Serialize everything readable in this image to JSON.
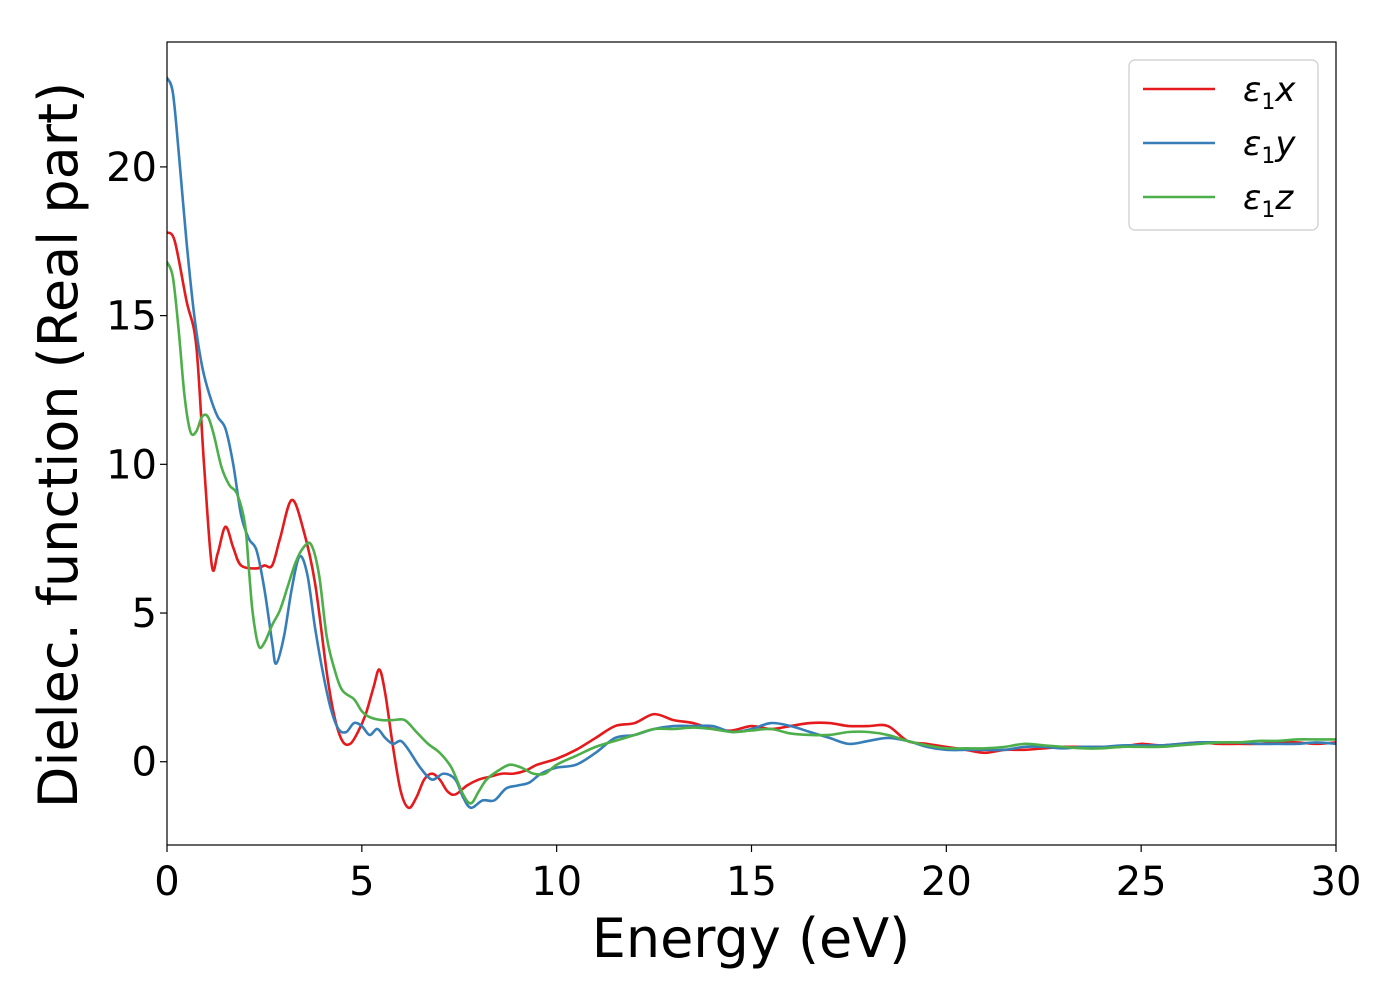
{
  "chart_data": {
    "type": "line",
    "title": "",
    "xlabel": "Energy (eV)",
    "ylabel": "Dielec. function (Real part)",
    "xlim": [
      0,
      30
    ],
    "ylim": [
      -2.8,
      24.2
    ],
    "xticks": [
      0,
      5,
      10,
      15,
      20,
      25,
      30
    ],
    "yticks": [
      0,
      5,
      10,
      15,
      20
    ],
    "grid": false,
    "legend_position": "top-right",
    "series": [
      {
        "name": "ε1x",
        "legend": {
          "base": "ε",
          "sub": "1",
          "suffix": "x"
        },
        "color": "#e41a1c",
        "points": [
          [
            0,
            17.8
          ],
          [
            0.2,
            17.5
          ],
          [
            0.5,
            15.5
          ],
          [
            0.75,
            14.0
          ],
          [
            0.95,
            10.0
          ],
          [
            1.15,
            6.6
          ],
          [
            1.3,
            7.0
          ],
          [
            1.5,
            7.9
          ],
          [
            1.7,
            7.2
          ],
          [
            1.9,
            6.6
          ],
          [
            2.3,
            6.5
          ],
          [
            2.5,
            6.6
          ],
          [
            2.7,
            6.6
          ],
          [
            2.9,
            7.5
          ],
          [
            3.2,
            8.8
          ],
          [
            3.5,
            7.8
          ],
          [
            3.8,
            6.0
          ],
          [
            4.1,
            3.0
          ],
          [
            4.3,
            1.5
          ],
          [
            4.5,
            0.7
          ],
          [
            4.7,
            0.6
          ],
          [
            4.9,
            1.0
          ],
          [
            5.1,
            1.6
          ],
          [
            5.3,
            2.5
          ],
          [
            5.45,
            3.1
          ],
          [
            5.6,
            2.3
          ],
          [
            5.8,
            0.5
          ],
          [
            6.0,
            -1.0
          ],
          [
            6.2,
            -1.55
          ],
          [
            6.4,
            -1.2
          ],
          [
            6.6,
            -0.6
          ],
          [
            6.8,
            -0.4
          ],
          [
            7.0,
            -0.6
          ],
          [
            7.2,
            -1.0
          ],
          [
            7.4,
            -1.1
          ],
          [
            7.7,
            -0.8
          ],
          [
            8.0,
            -0.6
          ],
          [
            8.3,
            -0.5
          ],
          [
            8.6,
            -0.4
          ],
          [
            8.9,
            -0.4
          ],
          [
            9.2,
            -0.3
          ],
          [
            9.5,
            -0.1
          ],
          [
            10.0,
            0.1
          ],
          [
            10.5,
            0.4
          ],
          [
            11.0,
            0.8
          ],
          [
            11.5,
            1.2
          ],
          [
            12.0,
            1.3
          ],
          [
            12.5,
            1.6
          ],
          [
            13.0,
            1.4
          ],
          [
            13.5,
            1.3
          ],
          [
            14.0,
            1.1
          ],
          [
            14.5,
            1.05
          ],
          [
            15.0,
            1.2
          ],
          [
            15.5,
            1.1
          ],
          [
            16.0,
            1.2
          ],
          [
            16.5,
            1.3
          ],
          [
            17.0,
            1.3
          ],
          [
            17.5,
            1.2
          ],
          [
            18.0,
            1.2
          ],
          [
            18.5,
            1.2
          ],
          [
            19.0,
            0.7
          ],
          [
            19.5,
            0.6
          ],
          [
            20.0,
            0.5
          ],
          [
            20.5,
            0.4
          ],
          [
            21.0,
            0.3
          ],
          [
            21.5,
            0.4
          ],
          [
            22.0,
            0.4
          ],
          [
            22.5,
            0.45
          ],
          [
            23.0,
            0.5
          ],
          [
            23.5,
            0.5
          ],
          [
            24.0,
            0.5
          ],
          [
            24.5,
            0.5
          ],
          [
            25.0,
            0.6
          ],
          [
            25.5,
            0.55
          ],
          [
            26.0,
            0.6
          ],
          [
            26.5,
            0.65
          ],
          [
            27.0,
            0.6
          ],
          [
            27.5,
            0.6
          ],
          [
            28.0,
            0.6
          ],
          [
            28.5,
            0.65
          ],
          [
            29.0,
            0.65
          ],
          [
            29.5,
            0.6
          ],
          [
            30.0,
            0.65
          ]
        ]
      },
      {
        "name": "ε1y",
        "legend": {
          "base": "ε",
          "sub": "1",
          "suffix": "y"
        },
        "color": "#377eb8",
        "points": [
          [
            0,
            23.0
          ],
          [
            0.15,
            22.5
          ],
          [
            0.3,
            20.5
          ],
          [
            0.5,
            17.5
          ],
          [
            0.7,
            15.0
          ],
          [
            0.9,
            13.3
          ],
          [
            1.1,
            12.3
          ],
          [
            1.3,
            11.6
          ],
          [
            1.5,
            11.2
          ],
          [
            1.7,
            10.0
          ],
          [
            1.9,
            8.3
          ],
          [
            2.1,
            7.5
          ],
          [
            2.3,
            7.1
          ],
          [
            2.5,
            5.8
          ],
          [
            2.7,
            4.0
          ],
          [
            2.8,
            3.3
          ],
          [
            3.0,
            4.2
          ],
          [
            3.2,
            5.8
          ],
          [
            3.4,
            6.9
          ],
          [
            3.6,
            6.3
          ],
          [
            3.8,
            4.5
          ],
          [
            4.0,
            3.0
          ],
          [
            4.2,
            1.8
          ],
          [
            4.4,
            1.1
          ],
          [
            4.6,
            1.0
          ],
          [
            4.8,
            1.3
          ],
          [
            5.0,
            1.2
          ],
          [
            5.2,
            0.9
          ],
          [
            5.4,
            1.1
          ],
          [
            5.6,
            0.8
          ],
          [
            5.8,
            0.6
          ],
          [
            6.0,
            0.7
          ],
          [
            6.2,
            0.4
          ],
          [
            6.5,
            -0.2
          ],
          [
            6.8,
            -0.6
          ],
          [
            7.1,
            -0.4
          ],
          [
            7.4,
            -0.6
          ],
          [
            7.6,
            -1.2
          ],
          [
            7.8,
            -1.55
          ],
          [
            8.1,
            -1.3
          ],
          [
            8.4,
            -1.3
          ],
          [
            8.7,
            -0.9
          ],
          [
            9.0,
            -0.8
          ],
          [
            9.3,
            -0.7
          ],
          [
            9.6,
            -0.4
          ],
          [
            10.0,
            -0.2
          ],
          [
            10.5,
            -0.1
          ],
          [
            11.0,
            0.3
          ],
          [
            11.5,
            0.8
          ],
          [
            12.0,
            0.9
          ],
          [
            12.5,
            1.1
          ],
          [
            13.0,
            1.2
          ],
          [
            13.5,
            1.2
          ],
          [
            14.0,
            1.2
          ],
          [
            14.5,
            1.0
          ],
          [
            15.0,
            1.1
          ],
          [
            15.5,
            1.3
          ],
          [
            16.0,
            1.2
          ],
          [
            16.5,
            1.0
          ],
          [
            17.0,
            0.8
          ],
          [
            17.5,
            0.6
          ],
          [
            18.0,
            0.7
          ],
          [
            18.5,
            0.8
          ],
          [
            19.0,
            0.7
          ],
          [
            19.5,
            0.5
          ],
          [
            20.0,
            0.4
          ],
          [
            20.5,
            0.4
          ],
          [
            21.0,
            0.4
          ],
          [
            21.5,
            0.4
          ],
          [
            22.0,
            0.5
          ],
          [
            22.5,
            0.5
          ],
          [
            23.0,
            0.45
          ],
          [
            23.5,
            0.5
          ],
          [
            24.0,
            0.5
          ],
          [
            24.5,
            0.55
          ],
          [
            25.0,
            0.55
          ],
          [
            25.5,
            0.55
          ],
          [
            26.0,
            0.6
          ],
          [
            26.5,
            0.65
          ],
          [
            27.0,
            0.65
          ],
          [
            27.5,
            0.65
          ],
          [
            28.0,
            0.6
          ],
          [
            28.5,
            0.6
          ],
          [
            29.0,
            0.6
          ],
          [
            29.5,
            0.65
          ],
          [
            30.0,
            0.6
          ]
        ]
      },
      {
        "name": "ε1z",
        "legend": {
          "base": "ε",
          "sub": "1",
          "suffix": "z"
        },
        "color": "#4daf4a",
        "points": [
          [
            0,
            16.8
          ],
          [
            0.15,
            16.3
          ],
          [
            0.3,
            14.5
          ],
          [
            0.45,
            12.3
          ],
          [
            0.6,
            11.1
          ],
          [
            0.75,
            11.1
          ],
          [
            0.9,
            11.6
          ],
          [
            1.05,
            11.6
          ],
          [
            1.2,
            11.0
          ],
          [
            1.4,
            9.9
          ],
          [
            1.6,
            9.3
          ],
          [
            1.8,
            9.0
          ],
          [
            2.0,
            8.0
          ],
          [
            2.1,
            6.5
          ],
          [
            2.2,
            5.0
          ],
          [
            2.35,
            3.9
          ],
          [
            2.5,
            4.0
          ],
          [
            2.7,
            4.6
          ],
          [
            2.9,
            5.1
          ],
          [
            3.1,
            5.9
          ],
          [
            3.3,
            6.7
          ],
          [
            3.5,
            7.2
          ],
          [
            3.7,
            7.3
          ],
          [
            3.9,
            6.3
          ],
          [
            4.1,
            4.2
          ],
          [
            4.3,
            3.1
          ],
          [
            4.5,
            2.4
          ],
          [
            4.8,
            2.1
          ],
          [
            5.0,
            1.7
          ],
          [
            5.2,
            1.5
          ],
          [
            5.5,
            1.4
          ],
          [
            5.8,
            1.4
          ],
          [
            6.1,
            1.4
          ],
          [
            6.4,
            1.0
          ],
          [
            6.7,
            0.6
          ],
          [
            7.0,
            0.3
          ],
          [
            7.3,
            -0.2
          ],
          [
            7.6,
            -1.1
          ],
          [
            7.8,
            -1.4
          ],
          [
            8.0,
            -1.0
          ],
          [
            8.2,
            -0.6
          ],
          [
            8.5,
            -0.3
          ],
          [
            8.8,
            -0.1
          ],
          [
            9.1,
            -0.2
          ],
          [
            9.4,
            -0.4
          ],
          [
            9.7,
            -0.4
          ],
          [
            10.0,
            -0.1
          ],
          [
            10.5,
            0.2
          ],
          [
            11.0,
            0.5
          ],
          [
            11.5,
            0.7
          ],
          [
            12.0,
            0.9
          ],
          [
            12.5,
            1.1
          ],
          [
            13.0,
            1.1
          ],
          [
            13.5,
            1.15
          ],
          [
            14.0,
            1.1
          ],
          [
            14.5,
            1.0
          ],
          [
            15.0,
            1.05
          ],
          [
            15.5,
            1.1
          ],
          [
            16.0,
            0.95
          ],
          [
            16.5,
            0.9
          ],
          [
            17.0,
            0.9
          ],
          [
            17.5,
            1.0
          ],
          [
            18.0,
            1.0
          ],
          [
            18.5,
            0.9
          ],
          [
            19.0,
            0.7
          ],
          [
            19.5,
            0.55
          ],
          [
            20.0,
            0.45
          ],
          [
            20.5,
            0.45
          ],
          [
            21.0,
            0.45
          ],
          [
            21.5,
            0.5
          ],
          [
            22.0,
            0.6
          ],
          [
            22.5,
            0.55
          ],
          [
            23.0,
            0.5
          ],
          [
            23.5,
            0.45
          ],
          [
            24.0,
            0.45
          ],
          [
            24.5,
            0.5
          ],
          [
            25.0,
            0.5
          ],
          [
            25.5,
            0.5
          ],
          [
            26.0,
            0.55
          ],
          [
            26.5,
            0.6
          ],
          [
            27.0,
            0.65
          ],
          [
            27.5,
            0.65
          ],
          [
            28.0,
            0.7
          ],
          [
            28.5,
            0.7
          ],
          [
            29.0,
            0.75
          ],
          [
            29.5,
            0.75
          ],
          [
            30.0,
            0.75
          ]
        ]
      }
    ]
  }
}
